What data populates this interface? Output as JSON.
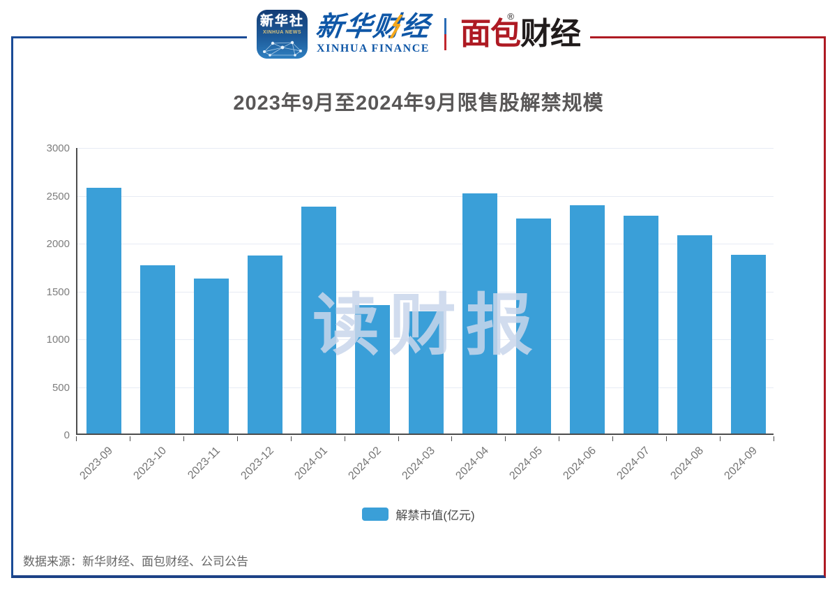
{
  "header": {
    "xinhua_app": {
      "cn": "新华社",
      "en": "XINHUA NEWS"
    },
    "xinhua_finance": {
      "cn": "新华财经",
      "en": "XINHUA FINANCE"
    },
    "mianbao": {
      "cn_red": "面包",
      "cn_black": "财经",
      "reg": "®"
    }
  },
  "title": "2023年9月至2024年9月限售股解禁规模",
  "watermark": "读财报",
  "legend": {
    "label": "解禁市值(亿元)"
  },
  "source": "数据来源：新华财经、面包财经、公司公告",
  "colors": {
    "bar": "#3a9fd8",
    "frame_blue": "#1a4b96",
    "frame_red": "#ae1a23",
    "grid": "#e7ebf4",
    "axis": "#4c4c4c"
  },
  "chart_data": {
    "type": "bar",
    "title": "2023年9月至2024年9月限售股解禁规模",
    "categories": [
      "2023-09",
      "2023-10",
      "2023-11",
      "2023-12",
      "2024-01",
      "2024-02",
      "2024-03",
      "2024-04",
      "2024-05",
      "2024-06",
      "2024-07",
      "2024-08",
      "2024-09"
    ],
    "values": [
      2570,
      1760,
      1620,
      1865,
      2375,
      1340,
      1280,
      2510,
      2250,
      2390,
      2275,
      2070,
      1870
    ],
    "series_name": "解禁市值(亿元)",
    "xlabel": "",
    "ylabel": "解禁市值(亿元)",
    "ylim": [
      0,
      3000
    ],
    "yticks": [
      0,
      500,
      1000,
      1500,
      2000,
      2500,
      3000
    ],
    "grid": true,
    "legend_position": "bottom",
    "bar_color": "#3a9fd8"
  }
}
